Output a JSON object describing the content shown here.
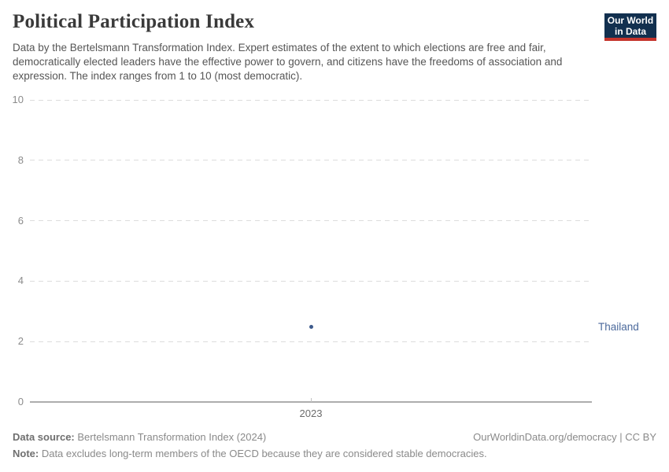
{
  "header": {
    "title": "Political Participation Index",
    "subtitle": "Data by the Bertelsmann Transformation Index. Expert estimates of the extent to which elections are free and fair, democratically elected leaders have the effective power to govern, and citizens have the freedoms of association and expression. The index ranges from 1 to 10 (most democratic).",
    "logo": {
      "line1": "Our World",
      "line2": "in Data",
      "bg_color": "#12304f",
      "bar_color": "#c5342c"
    }
  },
  "chart_data": {
    "type": "scatter",
    "title": "Political Participation Index",
    "x": [
      2023
    ],
    "series": [
      {
        "name": "Thailand",
        "values": [
          2.5
        ],
        "color": "#3d5a8c",
        "label_color": "#4c6a9c"
      }
    ],
    "xticks": [
      "2023"
    ],
    "yticks": [
      0,
      2,
      4,
      6,
      8,
      10
    ],
    "ylim": [
      0,
      10
    ],
    "xlabel": "",
    "ylabel": "",
    "grid": "horizontal-dashed",
    "legend_position": "right-of-point"
  },
  "footer": {
    "source_label": "Data source:",
    "source_text": " Bertelsmann Transformation Index (2024)",
    "link_text": "OurWorldinData.org/democracy | CC BY",
    "note_label": "Note:",
    "note_text": " Data excludes long-term members of the OECD because they are considered stable democracies."
  }
}
